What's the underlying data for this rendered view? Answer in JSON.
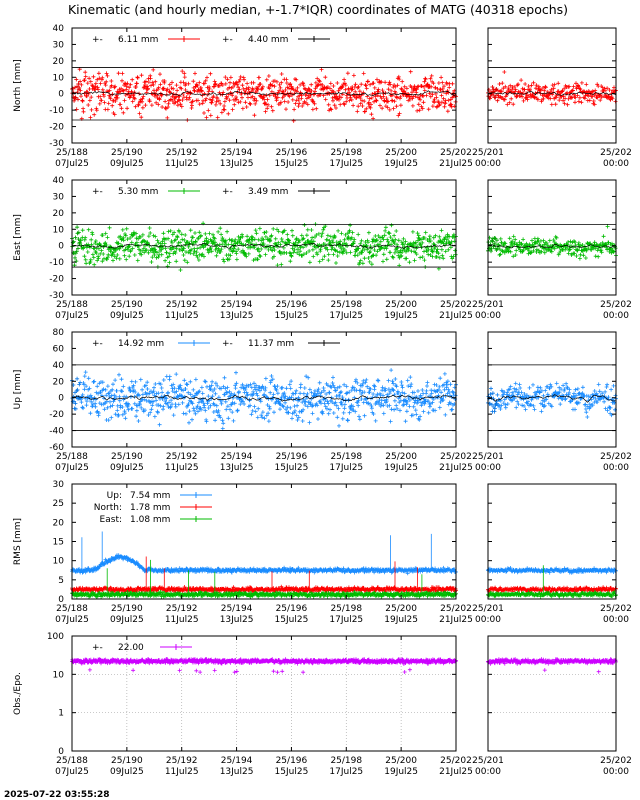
{
  "title": "Kinematic (and hourly median, +-1.7*IQR) coordinates of MATG (40318 epochs)",
  "footer_timestamp": "2025-07-22 03:55:28",
  "colors": {
    "north": "#ff0000",
    "east": "#00bb00",
    "up": "#1a8cff",
    "obs": "#cc00ff",
    "median": "#000000"
  },
  "time_axis": {
    "main": {
      "ticks": [
        "25/188",
        "25/190",
        "25/192",
        "25/194",
        "25/196",
        "25/198",
        "25/200",
        "25/202"
      ],
      "dates": [
        "07Jul25",
        "09Jul25",
        "11Jul25",
        "13Jul25",
        "15Jul25",
        "17Jul25",
        "19Jul25",
        "21Jul25"
      ]
    },
    "zoom": {
      "ticks": [
        "25/201",
        "25/202"
      ],
      "times": [
        "00:00",
        "00:00"
      ]
    }
  },
  "chart_data": [
    {
      "type": "scatter",
      "id": "north",
      "ylabel": "North [mm]",
      "ylim": [
        -30,
        40
      ],
      "yticks": [
        40,
        30,
        20,
        10,
        0,
        -10,
        -20,
        -30
      ],
      "iqr_lines": [
        16,
        -16
      ],
      "base_value": 0,
      "spread": 8,
      "legend": [
        {
          "marker": "+-",
          "value": "6.11 mm",
          "color": "#ff0000"
        },
        {
          "marker": "+-",
          "value": "4.40 mm",
          "color": "#000000"
        }
      ]
    },
    {
      "type": "scatter",
      "id": "east",
      "ylabel": "East [mm]",
      "ylim": [
        -30,
        40
      ],
      "yticks": [
        40,
        30,
        20,
        10,
        0,
        -10,
        -20,
        -30
      ],
      "iqr_lines": [
        13,
        -13
      ],
      "base_value": 0,
      "spread": 7,
      "legend": [
        {
          "marker": "+-",
          "value": "5.30 mm",
          "color": "#00bb00"
        },
        {
          "marker": "+-",
          "value": "3.49 mm",
          "color": "#000000"
        }
      ]
    },
    {
      "type": "scatter",
      "id": "up",
      "ylabel": "Up [mm]",
      "ylim": [
        -60,
        80
      ],
      "yticks": [
        80,
        60,
        40,
        20,
        0,
        -20,
        -40,
        -60
      ],
      "iqr_lines": [
        40,
        -40
      ],
      "base_value": 0,
      "spread": 18,
      "legend": [
        {
          "marker": "+-",
          "value": "14.92 mm",
          "color": "#1a8cff"
        },
        {
          "marker": "+-",
          "value": "11.37 mm",
          "color": "#000000"
        }
      ]
    },
    {
      "type": "line",
      "id": "rms",
      "ylabel": "RMS [mm]",
      "ylim": [
        0,
        30
      ],
      "yticks": [
        30,
        25,
        20,
        15,
        10,
        5,
        0
      ],
      "series": [
        {
          "name": "Up:",
          "value": "7.54 mm",
          "color": "#1a8cff",
          "level": 7.5
        },
        {
          "name": "North:",
          "value": "1.78 mm",
          "color": "#ff0000",
          "level": 2.5
        },
        {
          "name": "East:",
          "value": "1.08 mm",
          "color": "#00bb00",
          "level": 1.2
        }
      ]
    },
    {
      "type": "scatter",
      "id": "obs",
      "ylabel": "Obs./Epo.",
      "scale": "log",
      "yticks": [
        "100",
        "10",
        "1",
        "0"
      ],
      "base_value": 22,
      "legend": [
        {
          "marker": "+-",
          "value": "22.00",
          "color": "#cc00ff"
        }
      ]
    }
  ]
}
